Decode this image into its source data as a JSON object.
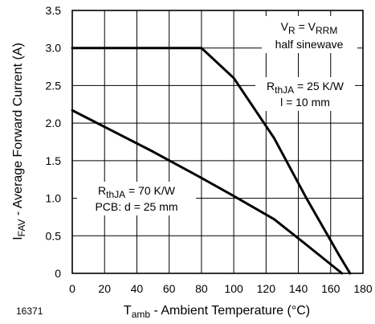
{
  "chart_data": {
    "type": "line",
    "figure_number": "16371",
    "xlabel": {
      "main": "T",
      "sub": "amb",
      "rest": " - Ambient Temperature (°C)"
    },
    "ylabel": {
      "main": "I",
      "sub": "FAV",
      "rest": " - Average Forward Current (A)"
    },
    "xlim": [
      0,
      180
    ],
    "ylim": [
      0,
      3.5
    ],
    "x_ticks": [
      0,
      20,
      40,
      60,
      80,
      100,
      120,
      140,
      160,
      180
    ],
    "x_tick_labels": [
      "0",
      "20",
      "40",
      "60",
      "80",
      "100",
      "120",
      "140",
      "160",
      "180"
    ],
    "y_ticks": [
      0,
      0.5,
      1.0,
      1.5,
      2.0,
      2.5,
      3.0,
      3.5
    ],
    "y_tick_labels": [
      "0",
      "0.5",
      "1.0",
      "1.5",
      "2.0",
      "2.5",
      "3.0",
      "3.5"
    ],
    "grid": true,
    "series": [
      {
        "x": [
          0,
          80,
          100,
          125,
          145,
          165,
          172
        ],
        "y": [
          3.0,
          3.0,
          2.6,
          1.8,
          1.0,
          0.25,
          0
        ]
      },
      {
        "x": [
          0,
          20,
          50,
          80,
          100,
          125,
          145,
          167
        ],
        "y": [
          2.17,
          1.95,
          1.62,
          1.27,
          1.03,
          0.72,
          0.38,
          0
        ]
      }
    ],
    "annotations": {
      "top_right": {
        "line1": {
          "a": "V",
          "a_sub": "R",
          "mid": " = V",
          "b_sub": "RRM"
        },
        "line2": "half sinewave"
      },
      "mid_right": {
        "line1": {
          "a": "R",
          "a_sub": "thJA",
          "rest": " = 25 K/W"
        },
        "line2": "l = 10 mm"
      },
      "lower_left": {
        "line1": {
          "a": "R",
          "a_sub": "thJA",
          "rest": " = 70 K/W"
        },
        "line2": "PCB: d = 25 mm"
      }
    }
  }
}
